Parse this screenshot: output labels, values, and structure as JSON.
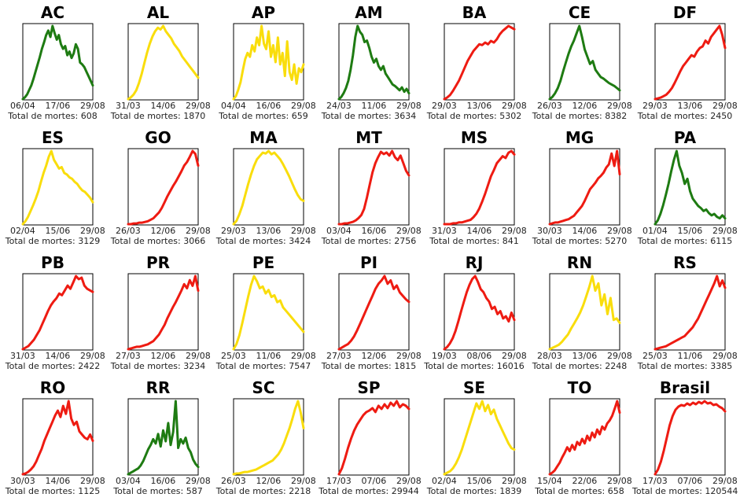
{
  "total_prefix": "Total de mortes: ",
  "colors": {
    "green": "#1e7b12",
    "yellow": "#f9dd0c",
    "red": "#ee1b12",
    "axis": "#000000"
  },
  "chart_data": [
    {
      "type": "line",
      "title": "AC",
      "x_ticks": [
        "06/04",
        "17/06",
        "29/08"
      ],
      "total": "608",
      "color": "green",
      "values": [
        0,
        2,
        5,
        10,
        15,
        22,
        30,
        38,
        46,
        55,
        62,
        70,
        75,
        68,
        80,
        72,
        65,
        70,
        60,
        55,
        58,
        48,
        52,
        45,
        50,
        60,
        55,
        40,
        38,
        35,
        30,
        25,
        20,
        15
      ]
    },
    {
      "type": "line",
      "title": "AL",
      "x_ticks": [
        "31/03",
        "14/06",
        "29/08"
      ],
      "total": "1870",
      "color": "yellow",
      "values": [
        0,
        2,
        5,
        10,
        18,
        28,
        40,
        52,
        62,
        70,
        76,
        80,
        78,
        82,
        76,
        72,
        68,
        62,
        58,
        54,
        48,
        44,
        40,
        36,
        32,
        28,
        24
      ]
    },
    {
      "type": "line",
      "title": "AP",
      "x_ticks": [
        "04/04",
        "16/06",
        "29/08"
      ],
      "total": "659",
      "color": "yellow",
      "values": [
        0,
        4,
        12,
        22,
        38,
        52,
        60,
        55,
        70,
        62,
        80,
        70,
        95,
        72,
        65,
        88,
        55,
        70,
        48,
        80,
        45,
        60,
        30,
        75,
        35,
        25,
        45,
        20,
        40,
        35,
        45
      ]
    },
    {
      "type": "line",
      "title": "AM",
      "x_ticks": [
        "24/03",
        "11/06",
        "29/08"
      ],
      "total": "3634",
      "color": "green",
      "values": [
        0,
        3,
        8,
        15,
        25,
        40,
        60,
        85,
        100,
        92,
        88,
        78,
        80,
        70,
        58,
        50,
        55,
        45,
        40,
        45,
        35,
        30,
        25,
        20,
        18,
        15,
        12,
        16,
        10,
        14,
        8
      ]
    },
    {
      "type": "line",
      "title": "BA",
      "x_ticks": [
        "29/03",
        "13/06",
        "29/08"
      ],
      "total": "5302",
      "color": "red",
      "values": [
        0,
        2,
        5,
        10,
        16,
        22,
        30,
        38,
        46,
        52,
        58,
        62,
        66,
        65,
        68,
        66,
        70,
        68,
        72,
        78,
        82,
        85,
        88,
        86,
        84
      ]
    },
    {
      "type": "line",
      "title": "CE",
      "x_ticks": [
        "26/03",
        "12/06",
        "29/08"
      ],
      "total": "8382",
      "color": "green",
      "values": [
        0,
        3,
        8,
        15,
        25,
        38,
        50,
        62,
        72,
        80,
        90,
        100,
        85,
        68,
        58,
        48,
        52,
        40,
        35,
        30,
        28,
        25,
        22,
        20,
        18,
        15,
        12
      ]
    },
    {
      "type": "line",
      "title": "DF",
      "x_ticks": [
        "29/03",
        "13/06",
        "29/08"
      ],
      "total": "2450",
      "color": "red",
      "values": [
        0,
        1,
        2,
        4,
        6,
        10,
        15,
        22,
        30,
        38,
        45,
        50,
        55,
        60,
        58,
        65,
        70,
        72,
        80,
        76,
        85,
        90,
        95,
        100,
        88,
        70
      ]
    },
    {
      "type": "line",
      "title": "ES",
      "x_ticks": [
        "02/04",
        "15/06",
        "29/08"
      ],
      "total": "3129",
      "color": "yellow",
      "values": [
        0,
        4,
        10,
        18,
        26,
        35,
        45,
        58,
        70,
        80,
        92,
        100,
        88,
        82,
        76,
        78,
        70,
        68,
        64,
        62,
        58,
        55,
        50,
        46,
        44,
        40,
        36,
        30
      ]
    },
    {
      "type": "line",
      "title": "GO",
      "x_ticks": [
        "26/03",
        "12/06",
        "29/08"
      ],
      "total": "3066",
      "color": "red",
      "values": [
        0,
        0,
        1,
        1,
        2,
        2,
        3,
        4,
        6,
        8,
        12,
        16,
        22,
        30,
        38,
        45,
        52,
        58,
        65,
        72,
        80,
        85,
        92,
        100,
        96,
        80
      ]
    },
    {
      "type": "line",
      "title": "MA",
      "x_ticks": [
        "29/03",
        "13/06",
        "29/08"
      ],
      "total": "3424",
      "color": "yellow",
      "values": [
        0,
        4,
        12,
        22,
        35,
        48,
        60,
        70,
        78,
        82,
        86,
        85,
        88,
        84,
        86,
        82,
        78,
        72,
        65,
        58,
        50,
        42,
        35,
        30,
        28
      ]
    },
    {
      "type": "line",
      "title": "MT",
      "x_ticks": [
        "03/04",
        "16/06",
        "29/08"
      ],
      "total": "2756",
      "color": "red",
      "values": [
        0,
        0,
        1,
        1,
        2,
        3,
        5,
        8,
        12,
        20,
        35,
        52,
        68,
        80,
        88,
        95,
        92,
        94,
        90,
        96,
        88,
        84,
        90,
        80,
        70,
        64
      ]
    },
    {
      "type": "line",
      "title": "MS",
      "x_ticks": [
        "31/03",
        "14/06",
        "29/08"
      ],
      "total": "841",
      "color": "red",
      "values": [
        0,
        0,
        0,
        1,
        1,
        2,
        2,
        3,
        4,
        5,
        8,
        12,
        18,
        26,
        35,
        45,
        55,
        62,
        70,
        74,
        78,
        76,
        82,
        84,
        80
      ]
    },
    {
      "type": "line",
      "title": "MG",
      "x_ticks": [
        "30/03",
        "14/06",
        "29/08"
      ],
      "total": "5270",
      "color": "red",
      "values": [
        0,
        1,
        2,
        2,
        3,
        4,
        5,
        6,
        8,
        10,
        14,
        18,
        22,
        28,
        35,
        42,
        46,
        50,
        55,
        58,
        62,
        68,
        72,
        85,
        70,
        88,
        60
      ]
    },
    {
      "type": "line",
      "title": "PA",
      "x_ticks": [
        "01/04",
        "15/06",
        "29/08"
      ],
      "total": "6115",
      "color": "green",
      "values": [
        0,
        5,
        14,
        26,
        40,
        55,
        72,
        88,
        100,
        80,
        70,
        55,
        62,
        45,
        35,
        30,
        25,
        22,
        18,
        20,
        15,
        12,
        14,
        10,
        8,
        12,
        8
      ]
    },
    {
      "type": "line",
      "title": "PB",
      "x_ticks": [
        "31/03",
        "14/06",
        "29/08"
      ],
      "total": "2422",
      "color": "red",
      "values": [
        0,
        2,
        4,
        8,
        12,
        18,
        24,
        32,
        40,
        48,
        55,
        60,
        64,
        70,
        68,
        74,
        80,
        76,
        84,
        92,
        88,
        90,
        80,
        76,
        74,
        72
      ]
    },
    {
      "type": "line",
      "title": "PR",
      "x_ticks": [
        "27/03",
        "12/06",
        "29/08"
      ],
      "total": "3234",
      "color": "red",
      "values": [
        0,
        1,
        2,
        3,
        3,
        4,
        5,
        6,
        8,
        10,
        14,
        18,
        24,
        30,
        38,
        45,
        52,
        58,
        65,
        72,
        80,
        75,
        85,
        78,
        90,
        72
      ]
    },
    {
      "type": "line",
      "title": "PE",
      "x_ticks": [
        "25/03",
        "11/06",
        "29/08"
      ],
      "total": "7547",
      "color": "yellow",
      "values": [
        0,
        6,
        16,
        30,
        45,
        60,
        74,
        84,
        78,
        70,
        72,
        64,
        68,
        60,
        62,
        54,
        56,
        48,
        44,
        40,
        36,
        32,
        28,
        24,
        20
      ]
    },
    {
      "type": "line",
      "title": "PI",
      "x_ticks": [
        "27/03",
        "12/06",
        "29/08"
      ],
      "total": "1815",
      "color": "red",
      "values": [
        0,
        2,
        4,
        6,
        10,
        15,
        22,
        30,
        38,
        46,
        54,
        62,
        70,
        76,
        80,
        85,
        76,
        80,
        70,
        74,
        66,
        62,
        58,
        55
      ]
    },
    {
      "type": "line",
      "title": "RJ",
      "x_ticks": [
        "19/03",
        "08/06",
        "29/08"
      ],
      "total": "16016",
      "color": "red",
      "values": [
        0,
        3,
        8,
        15,
        25,
        38,
        52,
        65,
        78,
        88,
        96,
        100,
        92,
        82,
        78,
        70,
        65,
        55,
        58,
        48,
        52,
        42,
        45,
        38,
        50,
        40
      ]
    },
    {
      "type": "line",
      "title": "RN",
      "x_ticks": [
        "28/03",
        "13/06",
        "29/08"
      ],
      "total": "2248",
      "color": "yellow",
      "values": [
        0,
        2,
        4,
        6,
        10,
        15,
        20,
        28,
        35,
        42,
        50,
        60,
        72,
        85,
        100,
        80,
        90,
        60,
        75,
        48,
        70,
        40,
        42,
        36
      ]
    },
    {
      "type": "line",
      "title": "RS",
      "x_ticks": [
        "25/03",
        "11/06",
        "29/08"
      ],
      "total": "3385",
      "color": "red",
      "values": [
        0,
        1,
        2,
        3,
        4,
        6,
        8,
        10,
        12,
        14,
        16,
        18,
        22,
        26,
        30,
        36,
        42,
        50,
        58,
        66,
        74,
        82,
        90,
        100,
        86,
        94,
        84
      ]
    },
    {
      "type": "line",
      "title": "RO",
      "x_ticks": [
        "30/03",
        "14/06",
        "29/08"
      ],
      "total": "1125",
      "color": "red",
      "values": [
        0,
        1,
        3,
        6,
        10,
        16,
        24,
        32,
        42,
        50,
        58,
        66,
        74,
        80,
        72,
        86,
        76,
        92,
        70,
        62,
        66,
        54,
        50,
        46,
        44,
        50,
        42
      ]
    },
    {
      "type": "line",
      "title": "RR",
      "x_ticks": [
        "03/04",
        "16/06",
        "29/08"
      ],
      "total": "587",
      "color": "green",
      "values": [
        0,
        2,
        4,
        6,
        8,
        12,
        18,
        26,
        34,
        40,
        48,
        42,
        55,
        38,
        60,
        45,
        70,
        40,
        58,
        100,
        36,
        48,
        42,
        50,
        36,
        30,
        20,
        14,
        10
      ]
    },
    {
      "type": "line",
      "title": "SC",
      "x_ticks": [
        "26/03",
        "12/06",
        "29/08"
      ],
      "total": "2218",
      "color": "yellow",
      "values": [
        0,
        1,
        1,
        2,
        3,
        3,
        4,
        5,
        6,
        8,
        10,
        12,
        14,
        16,
        18,
        22,
        26,
        32,
        40,
        50,
        60,
        72,
        85,
        95,
        80,
        60
      ]
    },
    {
      "type": "line",
      "title": "SP",
      "x_ticks": [
        "17/03",
        "07/06",
        "29/08"
      ],
      "total": "29944",
      "color": "red",
      "values": [
        0,
        8,
        20,
        34,
        46,
        56,
        64,
        70,
        76,
        80,
        82,
        85,
        80,
        88,
        84,
        90,
        85,
        92,
        88,
        94,
        86,
        90,
        88,
        84
      ]
    },
    {
      "type": "line",
      "title": "SE",
      "x_ticks": [
        "02/04",
        "15/06",
        "29/08"
      ],
      "total": "1839",
      "color": "yellow",
      "values": [
        0,
        2,
        4,
        8,
        14,
        22,
        32,
        44,
        56,
        68,
        80,
        92,
        85,
        95,
        82,
        90,
        78,
        84,
        72,
        64,
        56,
        48,
        40,
        34,
        32
      ]
    },
    {
      "type": "line",
      "title": "TO",
      "x_ticks": [
        "15/04",
        "22/06",
        "29/08"
      ],
      "total": "658",
      "color": "red",
      "values": [
        0,
        2,
        5,
        10,
        15,
        22,
        28,
        35,
        30,
        38,
        32,
        42,
        38,
        46,
        40,
        50,
        44,
        54,
        48,
        58,
        52,
        62,
        58,
        66,
        70,
        76,
        85,
        95,
        80
      ]
    },
    {
      "type": "line",
      "title": "Brasil",
      "x_ticks": [
        "17/03",
        "07/06",
        "29/08"
      ],
      "total": "120544",
      "color": "red",
      "values": [
        0,
        6,
        16,
        30,
        46,
        62,
        74,
        82,
        86,
        88,
        87,
        90,
        88,
        91,
        89,
        92,
        90,
        93,
        90,
        91,
        88,
        89,
        86,
        84,
        80
      ]
    }
  ]
}
